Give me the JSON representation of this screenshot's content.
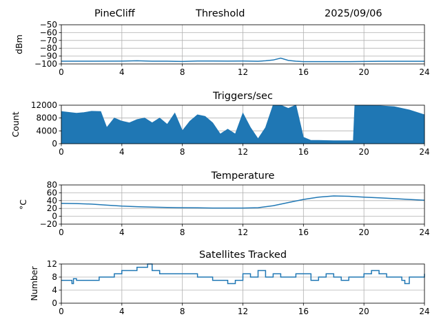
{
  "header": {
    "station": "PineCliff",
    "parameter": "Threshold",
    "date": "2025/09/06"
  },
  "colors": {
    "series": "#1f77b4",
    "grid": "#b0b0b0",
    "axes": "#000000"
  },
  "chart_data": [
    {
      "type": "line",
      "title": "",
      "ylabel": "dBm",
      "xlim": [
        0,
        24
      ],
      "ylim": [
        -100,
        -50
      ],
      "xticks": [
        0,
        4,
        8,
        12,
        16,
        20,
        24
      ],
      "yticks": [
        -100,
        -90,
        -80,
        -70,
        -60,
        -50
      ],
      "grid": true,
      "series": [
        {
          "x": [
            0,
            2,
            4,
            5,
            6,
            7,
            8,
            9,
            10,
            11,
            12,
            13,
            13.5,
            14,
            14.5,
            15,
            15.5,
            16,
            17,
            18,
            19,
            20,
            21,
            22,
            23,
            24
          ],
          "values": [
            -96.5,
            -96.5,
            -96.4,
            -96,
            -96.5,
            -96.5,
            -96.8,
            -96.2,
            -96.3,
            -96.4,
            -96.3,
            -96.6,
            -96,
            -95,
            -92.5,
            -95.5,
            -96.5,
            -97,
            -97,
            -97,
            -97,
            -96.8,
            -96.6,
            -96.6,
            -96.6,
            -96.6
          ]
        }
      ]
    },
    {
      "type": "area",
      "title": "Triggers/sec",
      "ylabel": "Count",
      "xlim": [
        0,
        24
      ],
      "ylim": [
        0,
        12000
      ],
      "xticks": [
        0,
        4,
        8,
        12,
        16,
        20,
        24
      ],
      "yticks": [
        0,
        4000,
        8000,
        12000
      ],
      "grid": true,
      "series": [
        {
          "x": [
            0,
            1,
            1.5,
            2,
            2.6,
            3,
            3.5,
            4,
            4.5,
            5,
            5.5,
            6,
            6.5,
            7,
            7.5,
            8,
            8.5,
            9,
            9.5,
            10,
            10.5,
            11,
            11.5,
            12,
            12.5,
            13,
            13.5,
            14,
            14.5,
            15,
            15.5,
            16,
            16.5,
            17,
            18,
            19.3,
            19.4,
            20,
            21,
            22,
            23,
            24
          ],
          "values": [
            10000,
            9500,
            9700,
            10100,
            10000,
            5000,
            8000,
            7000,
            6500,
            7500,
            8000,
            6500,
            8000,
            6000,
            9500,
            4000,
            7000,
            9000,
            8500,
            6500,
            3000,
            4500,
            3000,
            9500,
            5000,
            1500,
            5000,
            12000,
            12000,
            11000,
            12000,
            2000,
            1000,
            1000,
            900,
            900,
            12000,
            12000,
            11800,
            11500,
            10500,
            9000
          ]
        }
      ]
    },
    {
      "type": "line",
      "title": "Temperature",
      "ylabel": "°C",
      "xlim": [
        0,
        24
      ],
      "ylim": [
        -20,
        80
      ],
      "xticks": [
        0,
        4,
        8,
        12,
        16,
        20,
        24
      ],
      "yticks": [
        -20,
        0,
        20,
        40,
        60,
        80
      ],
      "grid": true,
      "series": [
        {
          "x": [
            0,
            1,
            2,
            3,
            4,
            5,
            6,
            7,
            8,
            9,
            10,
            11,
            12,
            13,
            14,
            15,
            16,
            17,
            18,
            19,
            20,
            21,
            22,
            23,
            24
          ],
          "values": [
            33,
            32.5,
            31,
            28.5,
            26,
            24.5,
            23.5,
            22.5,
            22,
            21.5,
            21,
            21,
            21,
            22,
            27,
            35,
            43,
            49,
            52,
            51,
            49,
            47,
            45,
            43,
            41
          ]
        }
      ]
    },
    {
      "type": "line",
      "title": "Satellites Tracked",
      "ylabel": "Number",
      "xlim": [
        0,
        24
      ],
      "ylim": [
        0,
        12
      ],
      "xticks": [
        0,
        4,
        8,
        12,
        16,
        20,
        24
      ],
      "yticks": [
        0,
        4,
        8,
        12
      ],
      "grid": true,
      "series": [
        {
          "x": [
            0,
            0.5,
            0.7,
            0.8,
            1,
            1.5,
            2,
            2.5,
            3,
            3.5,
            4,
            4.5,
            5,
            5.5,
            5.7,
            6,
            6.5,
            7,
            8,
            9,
            9.5,
            10,
            10.5,
            11,
            11.5,
            12,
            12.5,
            13,
            13.5,
            14,
            14.5,
            15,
            15.5,
            16,
            16.5,
            17,
            17.5,
            18,
            18.5,
            19,
            19.5,
            20,
            20.5,
            21,
            21.5,
            22,
            22.5,
            22.7,
            23,
            23.5,
            24
          ],
          "values": [
            7,
            7,
            6,
            7.5,
            7,
            7,
            7,
            8,
            8,
            9,
            10,
            10,
            11,
            11,
            12,
            10,
            9,
            9,
            9,
            8,
            8,
            7,
            7,
            6,
            7,
            9,
            8,
            10,
            8,
            9,
            8,
            8,
            9,
            9,
            7,
            8,
            9,
            8,
            7,
            8,
            8,
            9,
            10,
            9,
            8,
            8,
            7,
            6,
            8,
            8,
            9
          ]
        }
      ]
    }
  ]
}
